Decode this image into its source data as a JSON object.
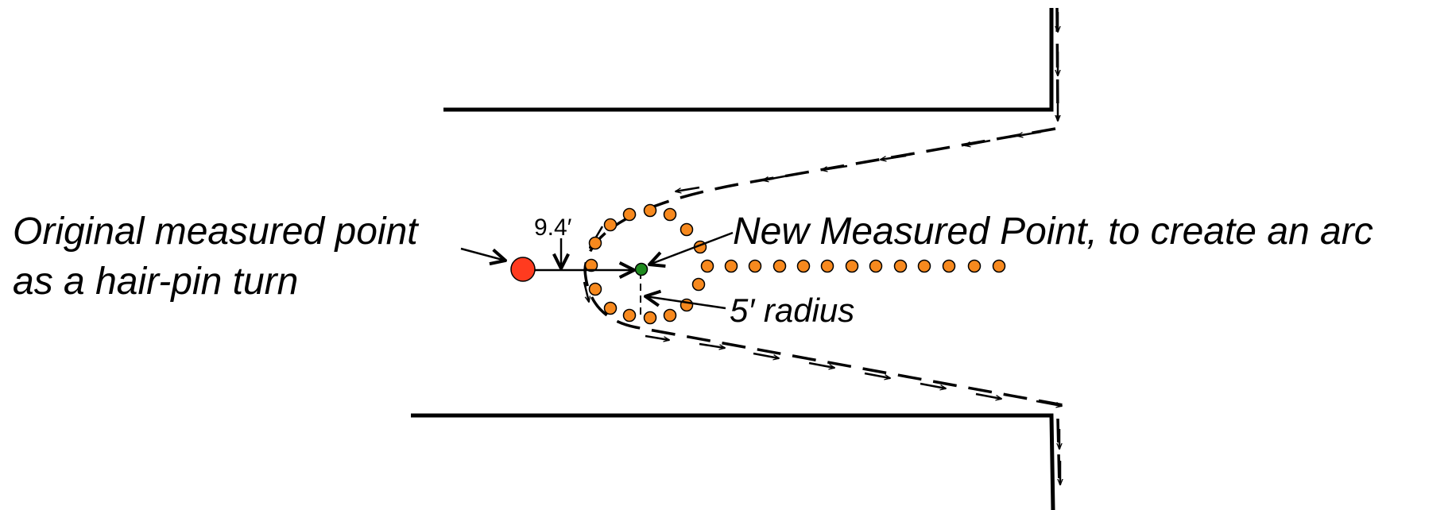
{
  "labels": {
    "original_point_line1": "Original measured point",
    "original_point_line2": "as a hair-pin turn",
    "new_point": "New Measured Point, to create an arc",
    "radius": "5′ radius",
    "distance": "9.4′"
  },
  "colors": {
    "original_point": "#ff3b1f",
    "new_point": "#1e8a1e",
    "arc_points": "#f7891e",
    "lines": "#000000"
  },
  "icons": {
    "original_point": "red-circle-marker",
    "new_point": "green-circle-marker",
    "arc_points": "orange-dot-marker"
  }
}
